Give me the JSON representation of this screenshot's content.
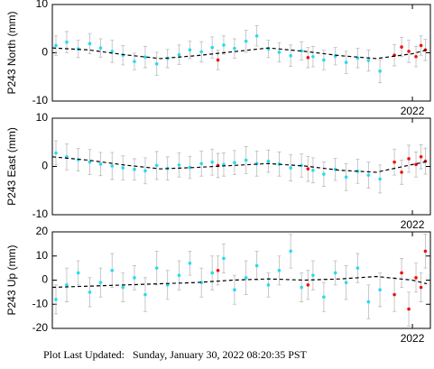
{
  "chart_data": [
    {
      "type": "scatter",
      "ylabel": "P243 North (mm)",
      "xlim": [
        2017.0,
        2022.25
      ],
      "xticks": [
        2022
      ],
      "ylim": [
        -10,
        10
      ],
      "yticks": [
        -10,
        0,
        10
      ],
      "series": [
        {
          "color": "#22dded",
          "x": [
            2017.05,
            2017.2,
            2017.36,
            2017.52,
            2017.67,
            2017.83,
            2017.98,
            2018.14,
            2018.29,
            2018.45,
            2018.6,
            2018.76,
            2018.91,
            2019.07,
            2019.22,
            2019.38,
            2019.53,
            2019.69,
            2019.84,
            2020.0,
            2020.15,
            2020.31,
            2020.46,
            2020.62,
            2020.77,
            2020.93,
            2021.08,
            2021.24,
            2021.39,
            2021.55
          ],
          "values": [
            1.5,
            2.2,
            0.8,
            1.9,
            1.0,
            0.3,
            -0.5,
            -1.8,
            -0.9,
            -2.3,
            -1.2,
            -0.4,
            0.6,
            0.2,
            1.1,
            1.6,
            0.9,
            2.4,
            3.5,
            0.8,
            0.1,
            -0.6,
            0.4,
            -0.8,
            -1.5,
            -0.7,
            -2.0,
            -1.1,
            -1.6,
            -3.8
          ],
          "errors": [
            2.0,
            2.2,
            1.8,
            2.1,
            1.9,
            2.3,
            2.0,
            1.7,
            2.2,
            2.4,
            1.9,
            2.0,
            1.8,
            2.1,
            2.2,
            1.9,
            2.0,
            2.3,
            2.1,
            1.8,
            2.0,
            2.2,
            1.9,
            2.1,
            2.0,
            1.8,
            2.3,
            2.0,
            2.2,
            2.4
          ]
        },
        {
          "color": "#ee1111",
          "x": [
            2019.3,
            2020.55,
            2021.75,
            2021.85,
            2021.95,
            2022.05,
            2022.12,
            2022.18
          ],
          "values": [
            -1.5,
            -1.0,
            -0.5,
            1.2,
            0.3,
            -0.8,
            1.5,
            0.6
          ],
          "errors": [
            2.0,
            2.1,
            2.2,
            2.0,
            2.3,
            2.1,
            2.0,
            2.2
          ]
        },
        {
          "color": "#000000",
          "line": "dashed",
          "x": [
            2017.0,
            2017.5,
            2018.0,
            2018.5,
            2019.0,
            2019.5,
            2020.0,
            2020.5,
            2021.0,
            2021.5,
            2022.0,
            2022.2
          ],
          "values": [
            1.0,
            0.6,
            -0.4,
            -1.2,
            -0.6,
            0.2,
            1.0,
            0.3,
            -0.6,
            -1.2,
            -0.2,
            0.6
          ]
        }
      ]
    },
    {
      "type": "scatter",
      "ylabel": "P243 East (mm)",
      "xlim": [
        2017.0,
        2022.25
      ],
      "xticks": [
        2022
      ],
      "ylim": [
        -10,
        10
      ],
      "yticks": [
        -10,
        0,
        10
      ],
      "series": [
        {
          "color": "#22dded",
          "x": [
            2017.05,
            2017.2,
            2017.36,
            2017.52,
            2017.67,
            2017.83,
            2017.98,
            2018.14,
            2018.29,
            2018.45,
            2018.6,
            2018.76,
            2018.91,
            2019.07,
            2019.22,
            2019.38,
            2019.53,
            2019.69,
            2019.84,
            2020.0,
            2020.15,
            2020.31,
            2020.46,
            2020.62,
            2020.77,
            2020.93,
            2021.08,
            2021.24,
            2021.39,
            2021.55
          ],
          "values": [
            2.8,
            2.0,
            1.4,
            0.9,
            0.5,
            0.1,
            -0.3,
            -0.6,
            -0.9,
            0.2,
            -0.4,
            0.3,
            -0.2,
            0.6,
            0.9,
            0.4,
            0.8,
            1.3,
            0.6,
            1.1,
            0.5,
            -0.3,
            0.2,
            -0.8,
            -1.6,
            -0.6,
            -2.2,
            -1.0,
            -1.8,
            -2.6
          ],
          "errors": [
            2.5,
            2.7,
            2.3,
            2.6,
            2.4,
            2.8,
            2.5,
            2.2,
            2.7,
            2.9,
            2.4,
            2.5,
            2.3,
            2.6,
            2.7,
            2.4,
            2.5,
            2.8,
            2.6,
            2.3,
            2.5,
            2.7,
            2.4,
            2.6,
            2.5,
            2.3,
            2.8,
            2.5,
            2.7,
            2.9
          ]
        },
        {
          "color": "#ee1111",
          "x": [
            2019.3,
            2020.55,
            2021.75,
            2021.85,
            2021.95,
            2022.05,
            2022.12,
            2022.18
          ],
          "values": [
            0.2,
            -0.5,
            0.9,
            -1.2,
            1.6,
            0.4,
            2.0,
            1.1
          ],
          "errors": [
            2.5,
            2.6,
            2.7,
            2.5,
            2.8,
            2.6,
            2.5,
            2.7
          ]
        },
        {
          "color": "#000000",
          "line": "dashed",
          "x": [
            2017.0,
            2017.5,
            2018.0,
            2018.5,
            2019.0,
            2019.5,
            2020.0,
            2020.5,
            2021.0,
            2021.5,
            2022.0,
            2022.2
          ],
          "values": [
            2.0,
            1.3,
            0.3,
            -0.5,
            -0.2,
            0.2,
            0.6,
            0.1,
            -0.8,
            -1.2,
            0.4,
            1.0
          ]
        }
      ]
    },
    {
      "type": "scatter",
      "ylabel": "P243 Up (mm)",
      "xlim": [
        2017.0,
        2022.25
      ],
      "xticks": [
        2022
      ],
      "ylim": [
        -20,
        20
      ],
      "yticks": [
        -20,
        -10,
        0,
        10,
        20
      ],
      "series": [
        {
          "color": "#22dded",
          "x": [
            2017.05,
            2017.2,
            2017.36,
            2017.52,
            2017.67,
            2017.83,
            2017.98,
            2018.14,
            2018.29,
            2018.45,
            2018.6,
            2018.76,
            2018.91,
            2019.07,
            2019.22,
            2019.38,
            2019.53,
            2019.69,
            2019.84,
            2020.0,
            2020.15,
            2020.31,
            2020.46,
            2020.62,
            2020.77,
            2020.93,
            2021.08,
            2021.24,
            2021.39,
            2021.55
          ],
          "values": [
            -8,
            -2,
            3,
            -5,
            -1,
            4,
            -3,
            1,
            -6,
            5,
            -2,
            2,
            7,
            -1,
            3,
            9,
            -4,
            1,
            6,
            -2,
            4,
            12,
            -3,
            2,
            -7,
            3,
            -1,
            5,
            -9,
            -4
          ],
          "errors": [
            6,
            7,
            5,
            6,
            6,
            7,
            6,
            5,
            7,
            7,
            6,
            6,
            5,
            6,
            7,
            6,
            6,
            7,
            6,
            5,
            6,
            7,
            6,
            6,
            6,
            5,
            7,
            6,
            7,
            7
          ]
        },
        {
          "color": "#ee1111",
          "x": [
            2019.3,
            2020.55,
            2021.75,
            2021.85,
            2021.95,
            2022.05,
            2022.12,
            2022.18
          ],
          "values": [
            4,
            -2,
            -6,
            3,
            -12,
            1,
            -3,
            12
          ],
          "errors": [
            6,
            6,
            7,
            6,
            7,
            6,
            6,
            7
          ]
        },
        {
          "color": "#000000",
          "line": "dashed",
          "x": [
            2017.0,
            2017.5,
            2018.0,
            2018.5,
            2019.0,
            2019.5,
            2020.0,
            2020.5,
            2021.0,
            2021.5,
            2022.0,
            2022.2
          ],
          "values": [
            -3,
            -2.5,
            -2,
            -1.5,
            -1,
            0,
            0.5,
            0,
            0.5,
            1.5,
            0,
            -1.5
          ]
        }
      ]
    }
  ],
  "footer": {
    "label": "Plot Last Updated:",
    "date": "Sunday, January 30, 2022 08:20:35 PST"
  }
}
